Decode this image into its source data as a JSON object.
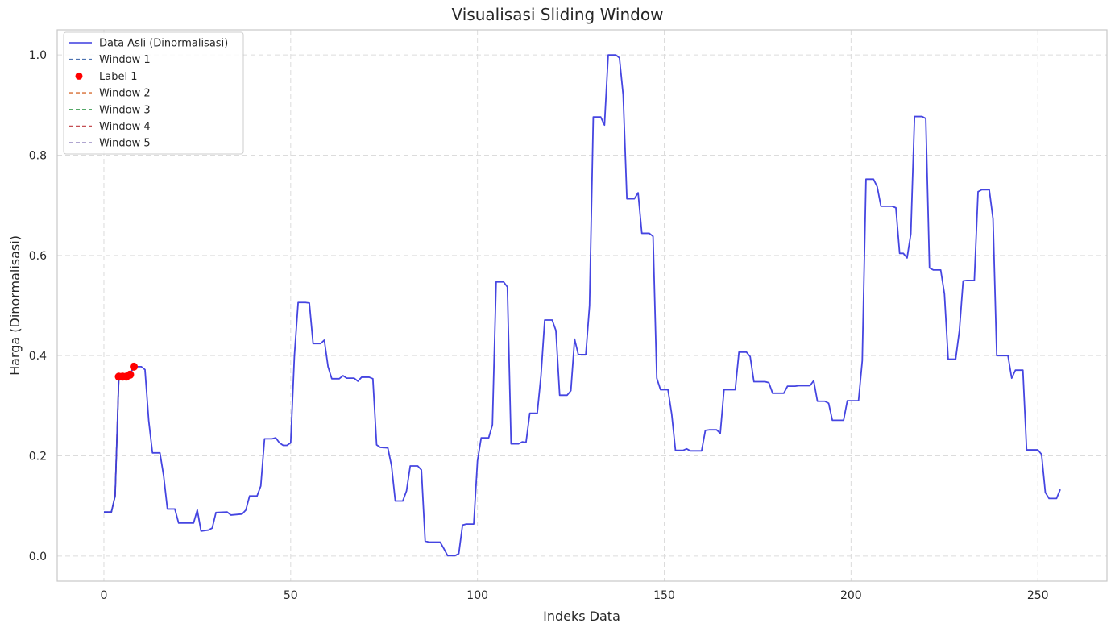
{
  "chart_data": {
    "type": "line",
    "title": "Visualisasi Sliding Window",
    "xlabel": "Indeks Data",
    "ylabel": "Harga (Dinormalisasi)",
    "xlim": [
      -12.5,
      268.5
    ],
    "ylim": [
      -0.05,
      1.05
    ],
    "xticks": [
      0,
      50,
      100,
      150,
      200,
      250
    ],
    "xtick_labels": [
      "0",
      "50",
      "100",
      "150",
      "200",
      "250"
    ],
    "yticks": [
      0.0,
      0.2,
      0.4,
      0.6,
      0.8,
      1.0
    ],
    "ytick_labels": [
      "0.0",
      "0.2",
      "0.4",
      "0.6",
      "0.8",
      "1.0"
    ],
    "grid": true,
    "legend_position": "top-left",
    "legend": [
      {
        "label": "Data Asli (Dinormalisasi)",
        "kind": "solid",
        "color": "#3b3bdf"
      },
      {
        "label": "Window 1",
        "kind": "dashed",
        "color": "#4c72b0"
      },
      {
        "label": "Label 1",
        "kind": "marker",
        "color": "#ff0000"
      },
      {
        "label": "Window 2",
        "kind": "dashed",
        "color": "#dd8452"
      },
      {
        "label": "Window 3",
        "kind": "dashed",
        "color": "#55a868"
      },
      {
        "label": "Window 4",
        "kind": "dashed",
        "color": "#c44e52"
      },
      {
        "label": "Window 5",
        "kind": "dashed",
        "color": "#8172b3"
      }
    ],
    "main_series": {
      "name": "Data Asli (Dinormalisasi)",
      "color": "#3b3bdf",
      "points": [
        [
          0,
          0.088
        ],
        [
          2,
          0.088
        ],
        [
          3,
          0.12
        ],
        [
          4,
          0.358
        ],
        [
          6,
          0.358
        ],
        [
          7,
          0.362
        ],
        [
          8,
          0.378
        ],
        [
          10,
          0.378
        ],
        [
          11,
          0.372
        ],
        [
          12,
          0.27
        ],
        [
          13,
          0.206
        ],
        [
          15,
          0.206
        ],
        [
          16,
          0.16
        ],
        [
          17,
          0.094
        ],
        [
          19,
          0.094
        ],
        [
          20,
          0.066
        ],
        [
          24,
          0.066
        ],
        [
          25,
          0.092
        ],
        [
          26,
          0.05
        ],
        [
          28,
          0.052
        ],
        [
          29,
          0.056
        ],
        [
          30,
          0.087
        ],
        [
          33,
          0.088
        ],
        [
          34,
          0.082
        ],
        [
          37,
          0.084
        ],
        [
          38,
          0.092
        ],
        [
          39,
          0.12
        ],
        [
          41,
          0.12
        ],
        [
          42,
          0.14
        ],
        [
          43,
          0.234
        ],
        [
          45,
          0.234
        ],
        [
          46,
          0.236
        ],
        [
          47,
          0.226
        ],
        [
          48,
          0.221
        ],
        [
          49,
          0.221
        ],
        [
          50,
          0.226
        ],
        [
          51,
          0.4
        ],
        [
          52,
          0.506
        ],
        [
          54,
          0.506
        ],
        [
          55,
          0.505
        ],
        [
          56,
          0.424
        ],
        [
          58,
          0.424
        ],
        [
          59,
          0.431
        ],
        [
          60,
          0.378
        ],
        [
          61,
          0.354
        ],
        [
          63,
          0.354
        ],
        [
          64,
          0.36
        ],
        [
          65,
          0.355
        ],
        [
          67,
          0.355
        ],
        [
          68,
          0.349
        ],
        [
          69,
          0.357
        ],
        [
          71,
          0.357
        ],
        [
          72,
          0.354
        ],
        [
          73,
          0.222
        ],
        [
          74,
          0.217
        ],
        [
          76,
          0.216
        ],
        [
          77,
          0.18
        ],
        [
          78,
          0.11
        ],
        [
          80,
          0.11
        ],
        [
          81,
          0.13
        ],
        [
          82,
          0.18
        ],
        [
          84,
          0.18
        ],
        [
          85,
          0.172
        ],
        [
          86,
          0.03
        ],
        [
          87,
          0.028
        ],
        [
          90,
          0.028
        ],
        [
          91,
          0.015
        ],
        [
          92,
          0.001
        ],
        [
          94,
          0.001
        ],
        [
          95,
          0.005
        ],
        [
          96,
          0.062
        ],
        [
          97,
          0.064
        ],
        [
          99,
          0.064
        ],
        [
          100,
          0.19
        ],
        [
          101,
          0.236
        ],
        [
          103,
          0.236
        ],
        [
          104,
          0.262
        ],
        [
          105,
          0.547
        ],
        [
          107,
          0.547
        ],
        [
          108,
          0.537
        ],
        [
          109,
          0.224
        ],
        [
          111,
          0.224
        ],
        [
          112,
          0.228
        ],
        [
          113,
          0.227
        ],
        [
          114,
          0.285
        ],
        [
          116,
          0.285
        ],
        [
          117,
          0.36
        ],
        [
          118,
          0.471
        ],
        [
          120,
          0.471
        ],
        [
          121,
          0.45
        ],
        [
          122,
          0.321
        ],
        [
          124,
          0.321
        ],
        [
          125,
          0.33
        ],
        [
          126,
          0.433
        ],
        [
          127,
          0.402
        ],
        [
          129,
          0.402
        ],
        [
          130,
          0.5
        ],
        [
          131,
          0.876
        ],
        [
          133,
          0.876
        ],
        [
          134,
          0.86
        ],
        [
          135,
          1.0
        ],
        [
          137,
          1.0
        ],
        [
          138,
          0.994
        ],
        [
          139,
          0.92
        ],
        [
          140,
          0.713
        ],
        [
          142,
          0.713
        ],
        [
          143,
          0.725
        ],
        [
          144,
          0.644
        ],
        [
          146,
          0.644
        ],
        [
          147,
          0.638
        ],
        [
          148,
          0.355
        ],
        [
          149,
          0.332
        ],
        [
          151,
          0.332
        ],
        [
          152,
          0.283
        ],
        [
          153,
          0.211
        ],
        [
          155,
          0.211
        ],
        [
          156,
          0.214
        ],
        [
          157,
          0.21
        ],
        [
          160,
          0.21
        ],
        [
          161,
          0.251
        ],
        [
          162,
          0.252
        ],
        [
          163,
          0.252
        ],
        [
          164,
          0.252
        ],
        [
          165,
          0.245
        ],
        [
          166,
          0.332
        ],
        [
          169,
          0.332
        ],
        [
          170,
          0.407
        ],
        [
          172,
          0.407
        ],
        [
          173,
          0.398
        ],
        [
          174,
          0.348
        ],
        [
          177,
          0.348
        ],
        [
          178,
          0.346
        ],
        [
          179,
          0.325
        ],
        [
          182,
          0.325
        ],
        [
          183,
          0.339
        ],
        [
          185,
          0.339
        ],
        [
          186,
          0.34
        ],
        [
          189,
          0.34
        ],
        [
          190,
          0.35
        ],
        [
          191,
          0.309
        ],
        [
          193,
          0.309
        ],
        [
          194,
          0.305
        ],
        [
          195,
          0.271
        ],
        [
          198,
          0.271
        ],
        [
          199,
          0.31
        ],
        [
          202,
          0.31
        ],
        [
          203,
          0.39
        ],
        [
          204,
          0.752
        ],
        [
          206,
          0.752
        ],
        [
          207,
          0.737
        ],
        [
          208,
          0.698
        ],
        [
          211,
          0.698
        ],
        [
          212,
          0.695
        ],
        [
          213,
          0.604
        ],
        [
          214,
          0.604
        ],
        [
          215,
          0.595
        ],
        [
          216,
          0.643
        ],
        [
          217,
          0.877
        ],
        [
          219,
          0.877
        ],
        [
          220,
          0.873
        ],
        [
          221,
          0.575
        ],
        [
          222,
          0.571
        ],
        [
          224,
          0.571
        ],
        [
          225,
          0.523
        ],
        [
          226,
          0.393
        ],
        [
          228,
          0.393
        ],
        [
          229,
          0.45
        ],
        [
          230,
          0.549
        ],
        [
          231,
          0.55
        ],
        [
          233,
          0.55
        ],
        [
          234,
          0.727
        ],
        [
          235,
          0.731
        ],
        [
          237,
          0.731
        ],
        [
          238,
          0.673
        ],
        [
          239,
          0.4
        ],
        [
          242,
          0.4
        ],
        [
          243,
          0.355
        ],
        [
          244,
          0.371
        ],
        [
          246,
          0.371
        ],
        [
          247,
          0.212
        ],
        [
          250,
          0.212
        ],
        [
          251,
          0.203
        ],
        [
          252,
          0.127
        ],
        [
          253,
          0.115
        ],
        [
          255,
          0.115
        ],
        [
          256,
          0.133
        ]
      ]
    },
    "label_series": {
      "name": "Label 1",
      "color": "#ff0000",
      "points": [
        [
          4,
          0.358
        ],
        [
          5,
          0.358
        ],
        [
          6,
          0.358
        ],
        [
          7,
          0.362
        ],
        [
          8,
          0.378
        ]
      ]
    },
    "window_series": [
      {
        "name": "Window 1",
        "color": "#4c72b0",
        "points": [
          [
            0,
            0.088
          ],
          [
            2,
            0.088
          ],
          [
            3,
            0.12
          ],
          [
            4,
            0.358
          ]
        ]
      },
      {
        "name": "Window 2",
        "color": "#dd8452",
        "points": [
          [
            1,
            0.088
          ],
          [
            2,
            0.088
          ],
          [
            3,
            0.12
          ],
          [
            4,
            0.358
          ],
          [
            5,
            0.358
          ]
        ]
      },
      {
        "name": "Window 3",
        "color": "#55a868",
        "points": [
          [
            2,
            0.088
          ],
          [
            3,
            0.12
          ],
          [
            4,
            0.358
          ],
          [
            5,
            0.358
          ],
          [
            6,
            0.358
          ]
        ]
      },
      {
        "name": "Window 4",
        "color": "#c44e52",
        "points": [
          [
            3,
            0.12
          ],
          [
            4,
            0.358
          ],
          [
            5,
            0.358
          ],
          [
            6,
            0.358
          ],
          [
            7,
            0.362
          ]
        ]
      },
      {
        "name": "Window 5",
        "color": "#8172b3",
        "points": [
          [
            4,
            0.358
          ],
          [
            5,
            0.358
          ],
          [
            6,
            0.358
          ],
          [
            7,
            0.362
          ],
          [
            8,
            0.378
          ]
        ]
      }
    ]
  }
}
